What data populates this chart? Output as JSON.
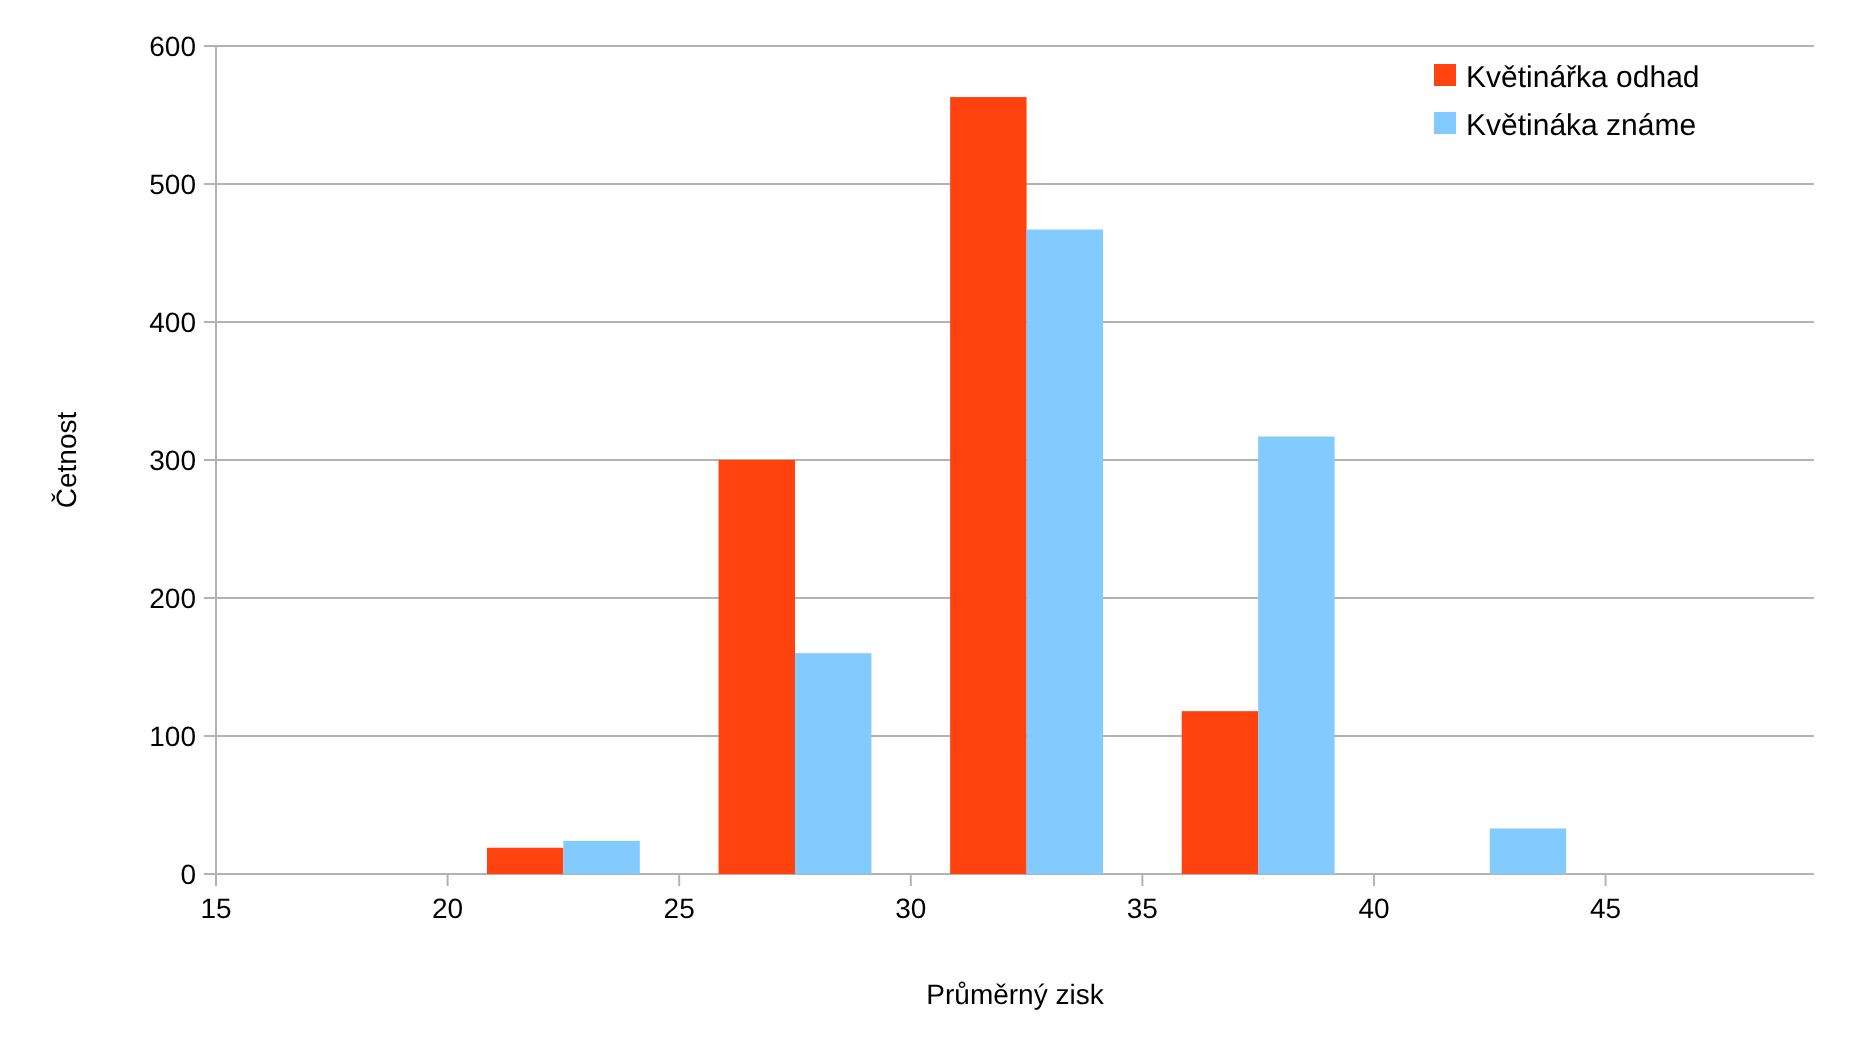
{
  "chart_data": {
    "type": "bar",
    "xlabel": "Průměrný zisk",
    "ylabel": "Četnost",
    "x": [
      22.5,
      27.5,
      32.5,
      37.5,
      42.5
    ],
    "series": [
      {
        "name": "Květinářka odhad",
        "color": "#ff420e",
        "values": [
          19,
          300,
          563,
          118,
          0
        ]
      },
      {
        "name": "Květináka známe",
        "color": "#83caff",
        "values": [
          24,
          160,
          467,
          317,
          33
        ]
      }
    ],
    "xlim": [
      15,
      49.5
    ],
    "xticks": [
      15,
      20,
      25,
      30,
      35,
      40,
      45
    ],
    "ylim": [
      0,
      600
    ],
    "yticks": [
      0,
      100,
      200,
      300,
      400,
      500,
      600
    ],
    "grid": "y",
    "legend": "top right"
  }
}
